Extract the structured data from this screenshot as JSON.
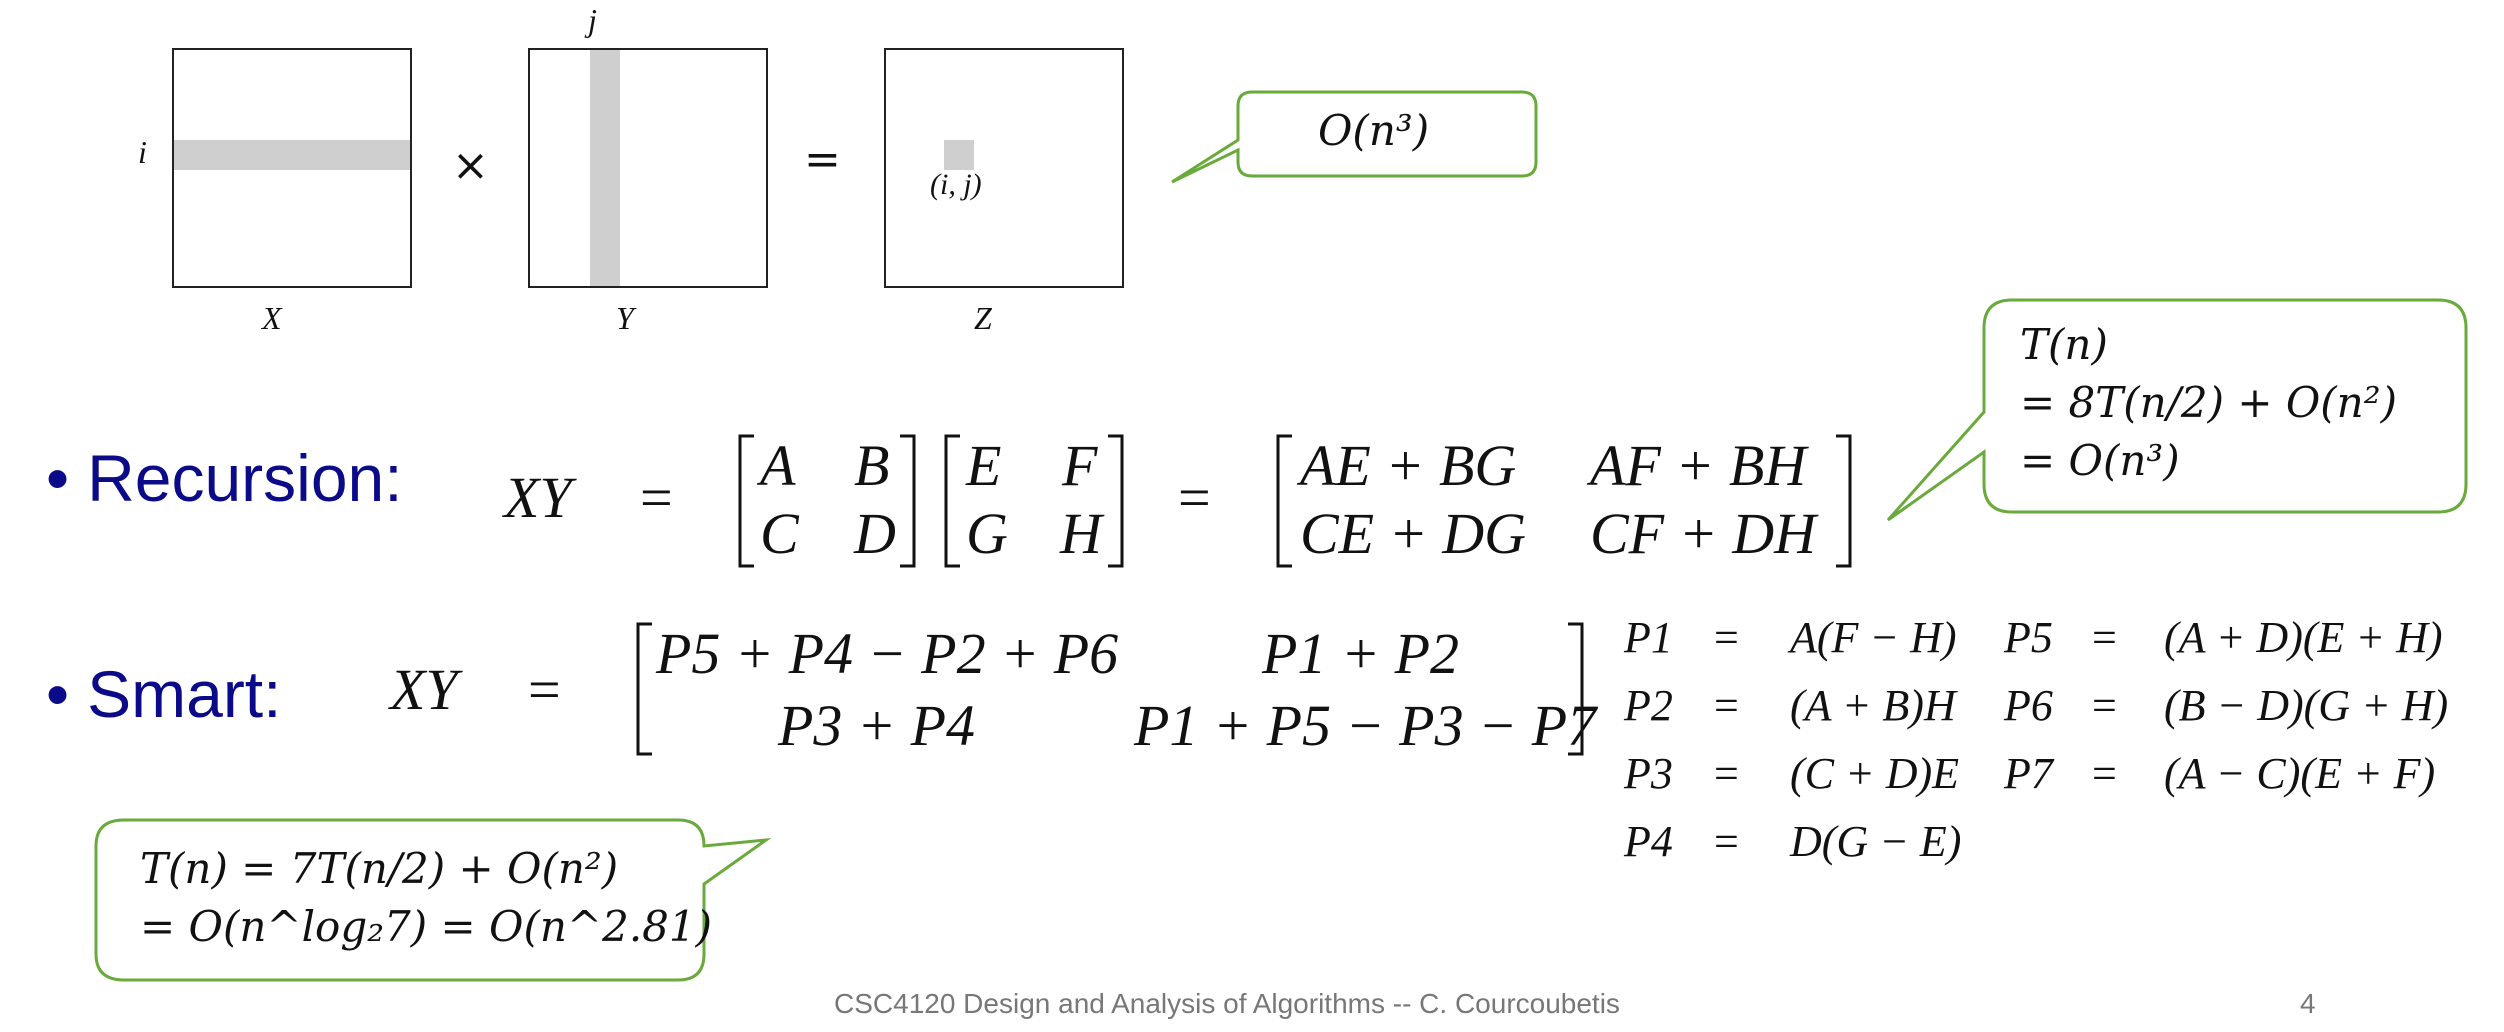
{
  "diagram": {
    "row_label": "i",
    "col_label": "j",
    "matrix_x_label": "X",
    "matrix_y_label": "Y",
    "matrix_z_label": "Z",
    "times_symbol": "×",
    "equals_symbol": "=",
    "cell_label": "(i, j)"
  },
  "callout_naive": {
    "text": "O(n³)"
  },
  "recursion": {
    "heading": "Recursion:",
    "lhs": "XY",
    "eq1": "=",
    "eq2": "=",
    "m1": [
      "A",
      "B",
      "C",
      "D"
    ],
    "m2": [
      "E",
      "F",
      "G",
      "H"
    ],
    "result": [
      "AE + BG",
      "AF + BH",
      "CE + DG",
      "CF + DH"
    ]
  },
  "callout_recursion": {
    "line1": "T(n)",
    "line2": "= 8T(n/2) + O(n²)",
    "line3": "= O(n³)"
  },
  "smart": {
    "heading": "Smart:",
    "lhs": "XY",
    "eq": "=",
    "cells": [
      "P5 + P4 − P2 + P6",
      "P1 + P2",
      "P3 + P4",
      "P1 + P5 − P3 − P7"
    ],
    "definitions": [
      {
        "name": "P1",
        "eq": "=",
        "expr": "A(F − H)"
      },
      {
        "name": "P2",
        "eq": "=",
        "expr": "(A + B)H"
      },
      {
        "name": "P3",
        "eq": "=",
        "expr": "(C + D)E"
      },
      {
        "name": "P4",
        "eq": "=",
        "expr": "D(G − E)"
      },
      {
        "name": "P5",
        "eq": "=",
        "expr": "(A + D)(E + H)"
      },
      {
        "name": "P6",
        "eq": "=",
        "expr": "(B − D)(G + H)"
      },
      {
        "name": "P7",
        "eq": "=",
        "expr": "(A − C)(E + F)"
      }
    ]
  },
  "callout_smart": {
    "line1": "T(n) = 7T(n/2) + O(n²)",
    "line2": "= O(n^log₂7) = O(n^2.81)"
  },
  "footer": {
    "course": "CSC4120 Design and Analysis of Algorithms -- C. Courcoubetis",
    "page_number": "4"
  },
  "colors": {
    "heading": "#0b0b8a",
    "callout_border": "#6aaa3c",
    "highlight": "#cfcfcf"
  }
}
